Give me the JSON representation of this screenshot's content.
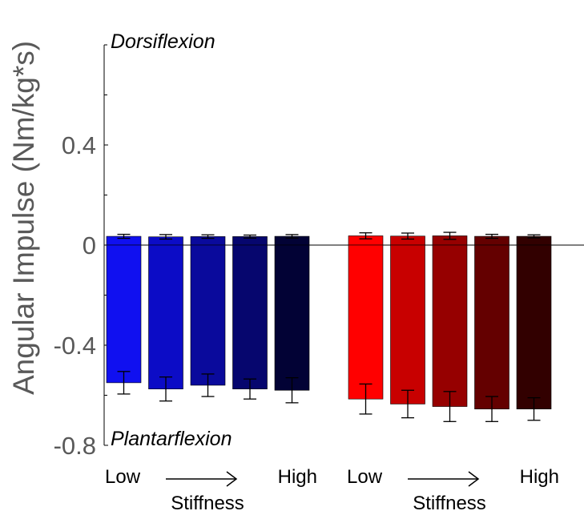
{
  "chart_data": {
    "type": "bar",
    "ylabel": "Angular Impulse (Nm/kg*s)",
    "ylim": [
      -0.8,
      0.8
    ],
    "yticks": [
      {
        "value": 0.4,
        "label": "0.4"
      },
      {
        "value": 0,
        "label": "0"
      },
      {
        "value": -0.4,
        "label": "-0.4"
      },
      {
        "value": -0.8,
        "label": "-0.8"
      }
    ],
    "minor_yticks": [
      0.8,
      0.6,
      0.2,
      -0.2,
      -0.6
    ],
    "annotations": {
      "top": "Dorsiflexion",
      "bottom": "Plantarflexion"
    },
    "groups": [
      {
        "low_label": "Low",
        "high_label": "High",
        "axis_label": "Stiffness",
        "bars": [
          {
            "pos": 0.035,
            "pos_err": 0.008,
            "neg": -0.55,
            "neg_err": 0.045,
            "color": "#1010f0"
          },
          {
            "pos": 0.033,
            "pos_err": 0.009,
            "neg": -0.575,
            "neg_err": 0.048,
            "color": "#0c0cc6"
          },
          {
            "pos": 0.034,
            "pos_err": 0.007,
            "neg": -0.56,
            "neg_err": 0.045,
            "color": "#0a0a9c"
          },
          {
            "pos": 0.034,
            "pos_err": 0.006,
            "neg": -0.575,
            "neg_err": 0.04,
            "color": "#06066e"
          },
          {
            "pos": 0.035,
            "pos_err": 0.007,
            "neg": -0.58,
            "neg_err": 0.05,
            "color": "#020235"
          }
        ]
      },
      {
        "low_label": "Low",
        "high_label": "High",
        "axis_label": "Stiffness",
        "bars": [
          {
            "pos": 0.037,
            "pos_err": 0.012,
            "neg": -0.615,
            "neg_err": 0.06,
            "color": "#ff0000"
          },
          {
            "pos": 0.036,
            "pos_err": 0.012,
            "neg": -0.635,
            "neg_err": 0.055,
            "color": "#c80000"
          },
          {
            "pos": 0.037,
            "pos_err": 0.014,
            "neg": -0.645,
            "neg_err": 0.06,
            "color": "#960000"
          },
          {
            "pos": 0.035,
            "pos_err": 0.008,
            "neg": -0.655,
            "neg_err": 0.05,
            "color": "#640000"
          },
          {
            "pos": 0.035,
            "pos_err": 0.006,
            "neg": -0.655,
            "neg_err": 0.045,
            "color": "#320000"
          }
        ]
      }
    ],
    "colors": {
      "text": "#595959",
      "axis": "#000000"
    }
  }
}
